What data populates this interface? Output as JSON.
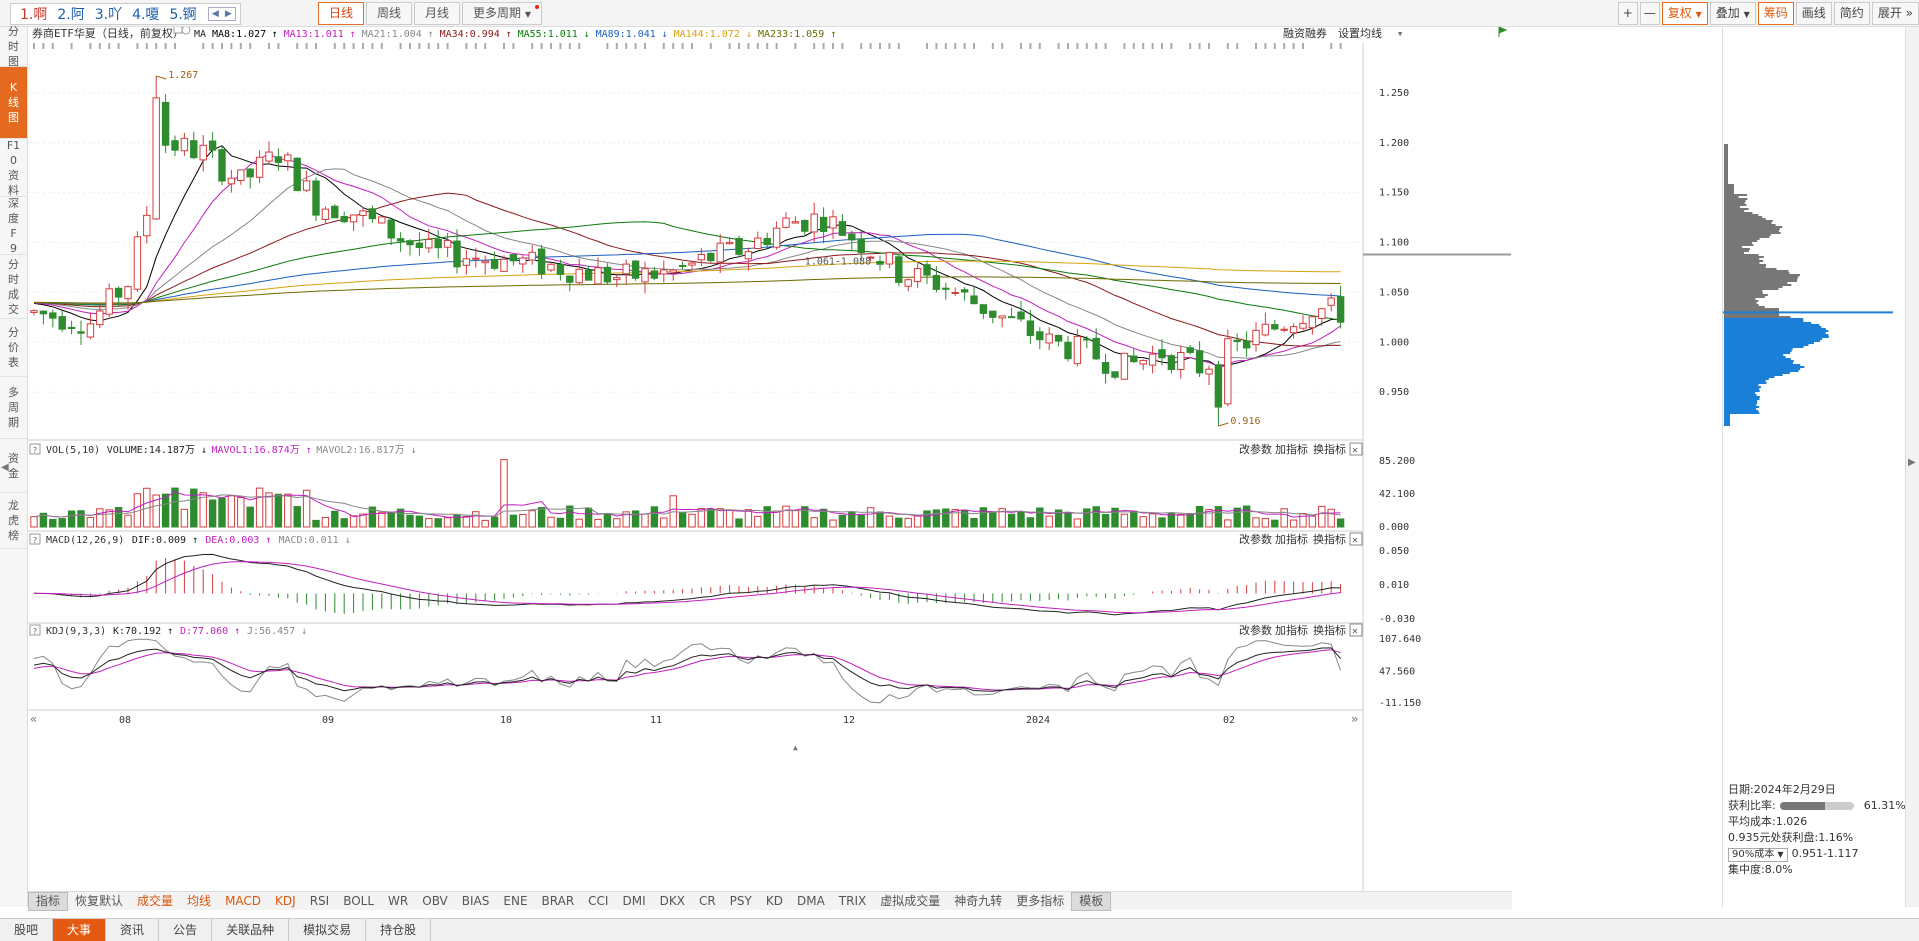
{
  "ime": {
    "candidates": [
      "1.啊",
      "2.阿",
      "3.吖",
      "4.嗄",
      "5.锕"
    ]
  },
  "period_tabs": [
    {
      "label": "日线",
      "active": true
    },
    {
      "label": "周线"
    },
    {
      "label": "月线"
    },
    {
      "label": "更多周期"
    }
  ],
  "toolbar": {
    "plus": "+",
    "minus": "—",
    "fuquan": "复权",
    "overlay": "叠加",
    "chouma": "筹码",
    "huaxian": "画线",
    "jianyue": "简约",
    "unfold": "展开"
  },
  "left_nav": [
    {
      "label": "分时图"
    },
    {
      "label": "K线图",
      "active": true
    },
    {
      "label": "F10资料"
    },
    {
      "label": "深度F9"
    },
    {
      "label": "分时成交"
    },
    {
      "label": "分价表"
    },
    {
      "label": "多周期"
    },
    {
      "label": "资金"
    },
    {
      "label": "龙虎榜"
    }
  ],
  "main": {
    "title": "券商ETF华夏（日线，前复权）",
    "ma_label": "MA",
    "ma": [
      {
        "name": "MA8",
        "value": "1.027",
        "dir": "up",
        "color": "#000000"
      },
      {
        "name": "MA13",
        "value": "1.011",
        "dir": "up",
        "color": "#c21fc2"
      },
      {
        "name": "MA21",
        "value": "1.004",
        "dir": "up",
        "color": "#888888"
      },
      {
        "name": "MA34",
        "value": "0.994",
        "dir": "up",
        "color": "#8b1a1a"
      },
      {
        "name": "MA55",
        "value": "1.011",
        "dir": "down",
        "color": "#0a7a0a"
      },
      {
        "name": "MA89",
        "value": "1.041",
        "dir": "down",
        "color": "#1c5fc2"
      },
      {
        "name": "MA144",
        "value": "1.072",
        "dir": "down",
        "color": "#d9a20f"
      },
      {
        "name": "MA233",
        "value": "1.059",
        "dir": "up",
        "color": "#6b6b00"
      }
    ],
    "rzrq": "融资融券",
    "set_ma": "设置均线",
    "high_label": "1.267",
    "low_label": "0.916",
    "range_label": "1.061-1.088",
    "yticks": [
      "1.250",
      "1.200",
      "1.150",
      "1.100",
      "1.050",
      "1.000",
      "0.950"
    ]
  },
  "vol": {
    "title": "VOL(5,10)",
    "volume_label": "VOLUME:",
    "volume": "14.187万",
    "mavol1_label": "MAVOL1:",
    "mavol1": "16.874万",
    "mavol2_label": "MAVOL2:",
    "mavol2": "16.817万",
    "yticks": [
      "85.200",
      "42.100",
      "0.000"
    ]
  },
  "macd": {
    "title": "MACD(12,26,9)",
    "dif_label": "DIF:",
    "dif": "0.009",
    "dea_label": "DEA:",
    "dea": "0.003",
    "macd_label": "MACD:",
    "macd": "0.011",
    "yticks": [
      "0.050",
      "0.010",
      "-0.030"
    ]
  },
  "kdj": {
    "title": "KDJ(9,3,3)",
    "k_label": "K:",
    "k": "70.192",
    "d_label": "D:",
    "d": "77.060",
    "j_label": "J:",
    "j": "56.457",
    "yticks": [
      "107.640",
      "47.560",
      "-11.150"
    ]
  },
  "panel_btns": {
    "change": "改参数",
    "add": "加指标",
    "swap": "换指标",
    "close": "✕",
    "help": "?"
  },
  "xaxis": [
    "08",
    "09",
    "10",
    "11",
    "12",
    "2024",
    "02"
  ],
  "chip": {
    "date_label": "日期:",
    "date": "2024年2月29日",
    "profit_ratio_label": "获利比率:",
    "profit_ratio": "61.31%",
    "profit_fraction": 0.6131,
    "avg_cost_label": "平均成本:",
    "avg_cost": "1.026",
    "profit_at_label": "0.935元处获利盘:",
    "profit_at": "1.16%",
    "cost_sel": "90%成本",
    "cost_range": "0.951-1.117",
    "concentration_label": "集中度:",
    "concentration": "8.0%"
  },
  "indicators": [
    {
      "label": "指标",
      "box": true
    },
    {
      "label": "恢复默认"
    },
    {
      "label": "成交量",
      "orange": true
    },
    {
      "label": "均线",
      "orange": true
    },
    {
      "label": "MACD",
      "orange": true
    },
    {
      "label": "KDJ",
      "orange": true
    },
    {
      "label": "RSI"
    },
    {
      "label": "BOLL"
    },
    {
      "label": "WR"
    },
    {
      "label": "OBV"
    },
    {
      "label": "BIAS"
    },
    {
      "label": "ENE"
    },
    {
      "label": "BRAR"
    },
    {
      "label": "CCI"
    },
    {
      "label": "DMI"
    },
    {
      "label": "DKX"
    },
    {
      "label": "CR"
    },
    {
      "label": "PSY"
    },
    {
      "label": "KD"
    },
    {
      "label": "DMA"
    },
    {
      "label": "TRIX"
    },
    {
      "label": "虚拟成交量"
    },
    {
      "label": "神奇九转"
    },
    {
      "label": "更多指标"
    },
    {
      "label": "模板",
      "box": true
    }
  ],
  "bottom_tabs": [
    {
      "label": "股吧"
    },
    {
      "label": "大事",
      "active": true
    },
    {
      "label": "资讯"
    },
    {
      "label": "公告"
    },
    {
      "label": "关联品种"
    },
    {
      "label": "模拟交易"
    },
    {
      "label": "持仓股"
    }
  ],
  "colors": {
    "up": "#d43c3c",
    "down": "#2e8b2e",
    "chip_profit": "#777777",
    "chip_loss": "#1a7fd6"
  }
}
